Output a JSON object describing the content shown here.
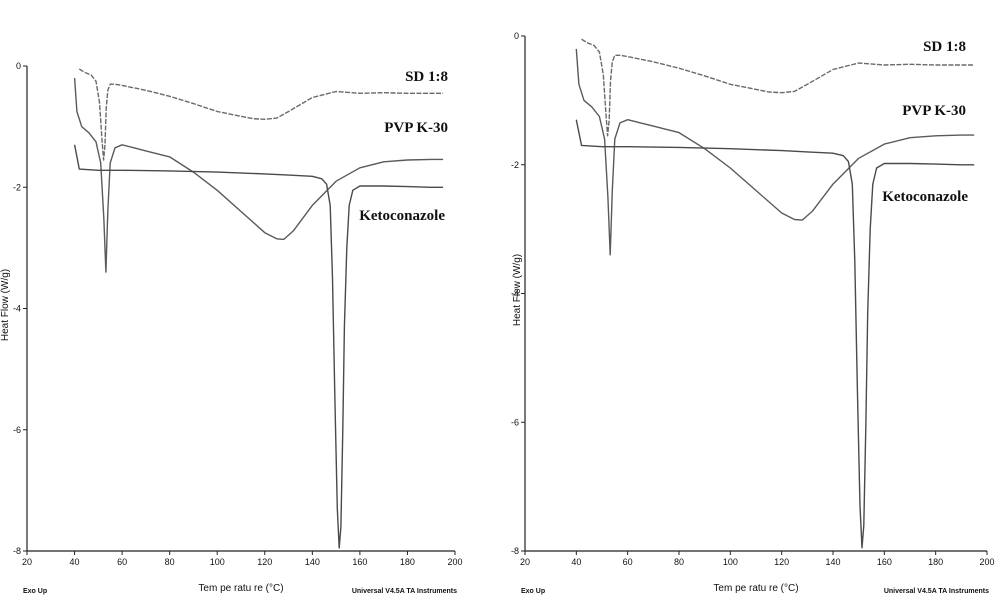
{
  "chart_data": [
    {
      "type": "line",
      "xlabel": "Tem pe ratu re (°C)",
      "ylabel": "Heat Flow (W/g)",
      "footer_left": "Exo Up",
      "footer_right": "Universal V4.5A TA Instruments",
      "xlim": [
        20,
        200
      ],
      "ylim": [
        -8,
        0
      ],
      "xticks": [
        "20",
        "40",
        "60",
        "80",
        "100",
        "120",
        "140",
        "160",
        "180",
        "200"
      ],
      "yticks": [
        "0",
        "-2",
        "-4",
        "-6",
        "-8"
      ],
      "series": [
        {
          "name": "SD 1:8",
          "color": "#6a6a6a",
          "dashed": true,
          "x": [
            42,
            44,
            47,
            49,
            50.5,
            51.5,
            52.2,
            52.8,
            53.3,
            54,
            55,
            57,
            60,
            70,
            80,
            90,
            100,
            110,
            115,
            120,
            125,
            130,
            140,
            150,
            160,
            170,
            180,
            190,
            195
          ],
          "y": [
            -0.05,
            -0.1,
            -0.15,
            -0.25,
            -0.6,
            -1.2,
            -1.55,
            -1.3,
            -0.7,
            -0.4,
            -0.3,
            -0.3,
            -0.32,
            -0.4,
            -0.5,
            -0.62,
            -0.75,
            -0.83,
            -0.87,
            -0.88,
            -0.86,
            -0.75,
            -0.52,
            -0.42,
            -0.45,
            -0.44,
            -0.45,
            -0.45,
            -0.45
          ]
        },
        {
          "name": "PVP K-30",
          "color": "#5a5a5a",
          "dashed": false,
          "x": [
            40,
            41,
            43,
            46,
            49,
            51,
            52.3,
            53.2,
            54,
            55,
            57,
            60,
            65,
            70,
            80,
            90,
            100,
            110,
            120,
            125,
            128,
            132,
            140,
            150,
            160,
            170,
            180,
            190,
            195
          ],
          "y": [
            -0.2,
            -0.75,
            -1.0,
            -1.1,
            -1.25,
            -1.6,
            -2.5,
            -3.4,
            -2.4,
            -1.6,
            -1.35,
            -1.3,
            -1.35,
            -1.4,
            -1.5,
            -1.75,
            -2.05,
            -2.4,
            -2.75,
            -2.85,
            -2.86,
            -2.72,
            -2.3,
            -1.9,
            -1.68,
            -1.58,
            -1.55,
            -1.54,
            -1.54
          ]
        },
        {
          "name": "Ketoconazole",
          "color": "#4a4a4a",
          "dashed": false,
          "x": [
            40,
            42,
            50,
            60,
            80,
            100,
            120,
            130,
            140,
            144,
            146,
            147.5,
            148.5,
            149.5,
            150.5,
            151.3,
            152,
            152.8,
            153.5,
            154.5,
            155.5,
            157,
            160,
            170,
            180,
            190,
            195
          ],
          "y": [
            -1.3,
            -1.7,
            -1.72,
            -1.72,
            -1.73,
            -1.75,
            -1.78,
            -1.8,
            -1.82,
            -1.86,
            -1.95,
            -2.3,
            -3.5,
            -5.5,
            -7.3,
            -7.95,
            -7.6,
            -6.0,
            -4.3,
            -3.0,
            -2.3,
            -2.05,
            -1.98,
            -1.98,
            -1.99,
            -2.0,
            -2.0
          ]
        }
      ]
    },
    {
      "type": "line",
      "xlabel": "Tem pe ratu re (°C)",
      "ylabel": "Heat Flow (W/g)",
      "footer_left": "Exo Up",
      "footer_right": "Universal V4.5A TA Instruments",
      "xlim": [
        20,
        200
      ],
      "ylim": [
        -8,
        0
      ],
      "xticks": [
        "20",
        "40",
        "60",
        "80",
        "100",
        "120",
        "140",
        "160",
        "180",
        "200"
      ],
      "yticks": [
        "0",
        "-2",
        "-4",
        "-6",
        "-8"
      ],
      "series": [
        {
          "name": "SD 1:8",
          "color": "#6a6a6a",
          "dashed": true,
          "x": [
            42,
            44,
            47,
            49,
            50.5,
            51.5,
            52.2,
            52.8,
            53.3,
            54,
            55,
            57,
            60,
            70,
            80,
            90,
            100,
            110,
            115,
            120,
            125,
            130,
            140,
            150,
            160,
            170,
            180,
            190,
            195
          ],
          "y": [
            -0.05,
            -0.1,
            -0.15,
            -0.25,
            -0.6,
            -1.2,
            -1.55,
            -1.3,
            -0.7,
            -0.4,
            -0.3,
            -0.3,
            -0.32,
            -0.4,
            -0.5,
            -0.62,
            -0.75,
            -0.83,
            -0.87,
            -0.88,
            -0.86,
            -0.75,
            -0.52,
            -0.42,
            -0.45,
            -0.44,
            -0.45,
            -0.45,
            -0.45
          ]
        },
        {
          "name": "PVP K-30",
          "color": "#5a5a5a",
          "dashed": false,
          "x": [
            40,
            41,
            43,
            46,
            49,
            51,
            52.3,
            53.2,
            54,
            55,
            57,
            60,
            65,
            70,
            80,
            90,
            100,
            110,
            120,
            125,
            128,
            132,
            140,
            150,
            160,
            170,
            180,
            190,
            195
          ],
          "y": [
            -0.2,
            -0.75,
            -1.0,
            -1.1,
            -1.25,
            -1.6,
            -2.5,
            -3.4,
            -2.4,
            -1.6,
            -1.35,
            -1.3,
            -1.35,
            -1.4,
            -1.5,
            -1.75,
            -2.05,
            -2.4,
            -2.75,
            -2.85,
            -2.86,
            -2.72,
            -2.3,
            -1.9,
            -1.68,
            -1.58,
            -1.55,
            -1.54,
            -1.54
          ]
        },
        {
          "name": "Ketoconazole",
          "color": "#4a4a4a",
          "dashed": false,
          "x": [
            40,
            42,
            50,
            60,
            80,
            100,
            120,
            130,
            140,
            144,
            146,
            147.5,
            148.5,
            149.5,
            150.5,
            151.3,
            152,
            152.8,
            153.5,
            154.5,
            155.5,
            157,
            160,
            170,
            180,
            190,
            195
          ],
          "y": [
            -1.3,
            -1.7,
            -1.72,
            -1.72,
            -1.73,
            -1.75,
            -1.78,
            -1.8,
            -1.82,
            -1.86,
            -1.95,
            -2.3,
            -3.5,
            -5.5,
            -7.3,
            -7.95,
            -7.6,
            -6.0,
            -4.3,
            -3.0,
            -2.3,
            -2.05,
            -1.98,
            -1.98,
            -1.99,
            -2.0,
            -2.0
          ]
        }
      ]
    }
  ]
}
